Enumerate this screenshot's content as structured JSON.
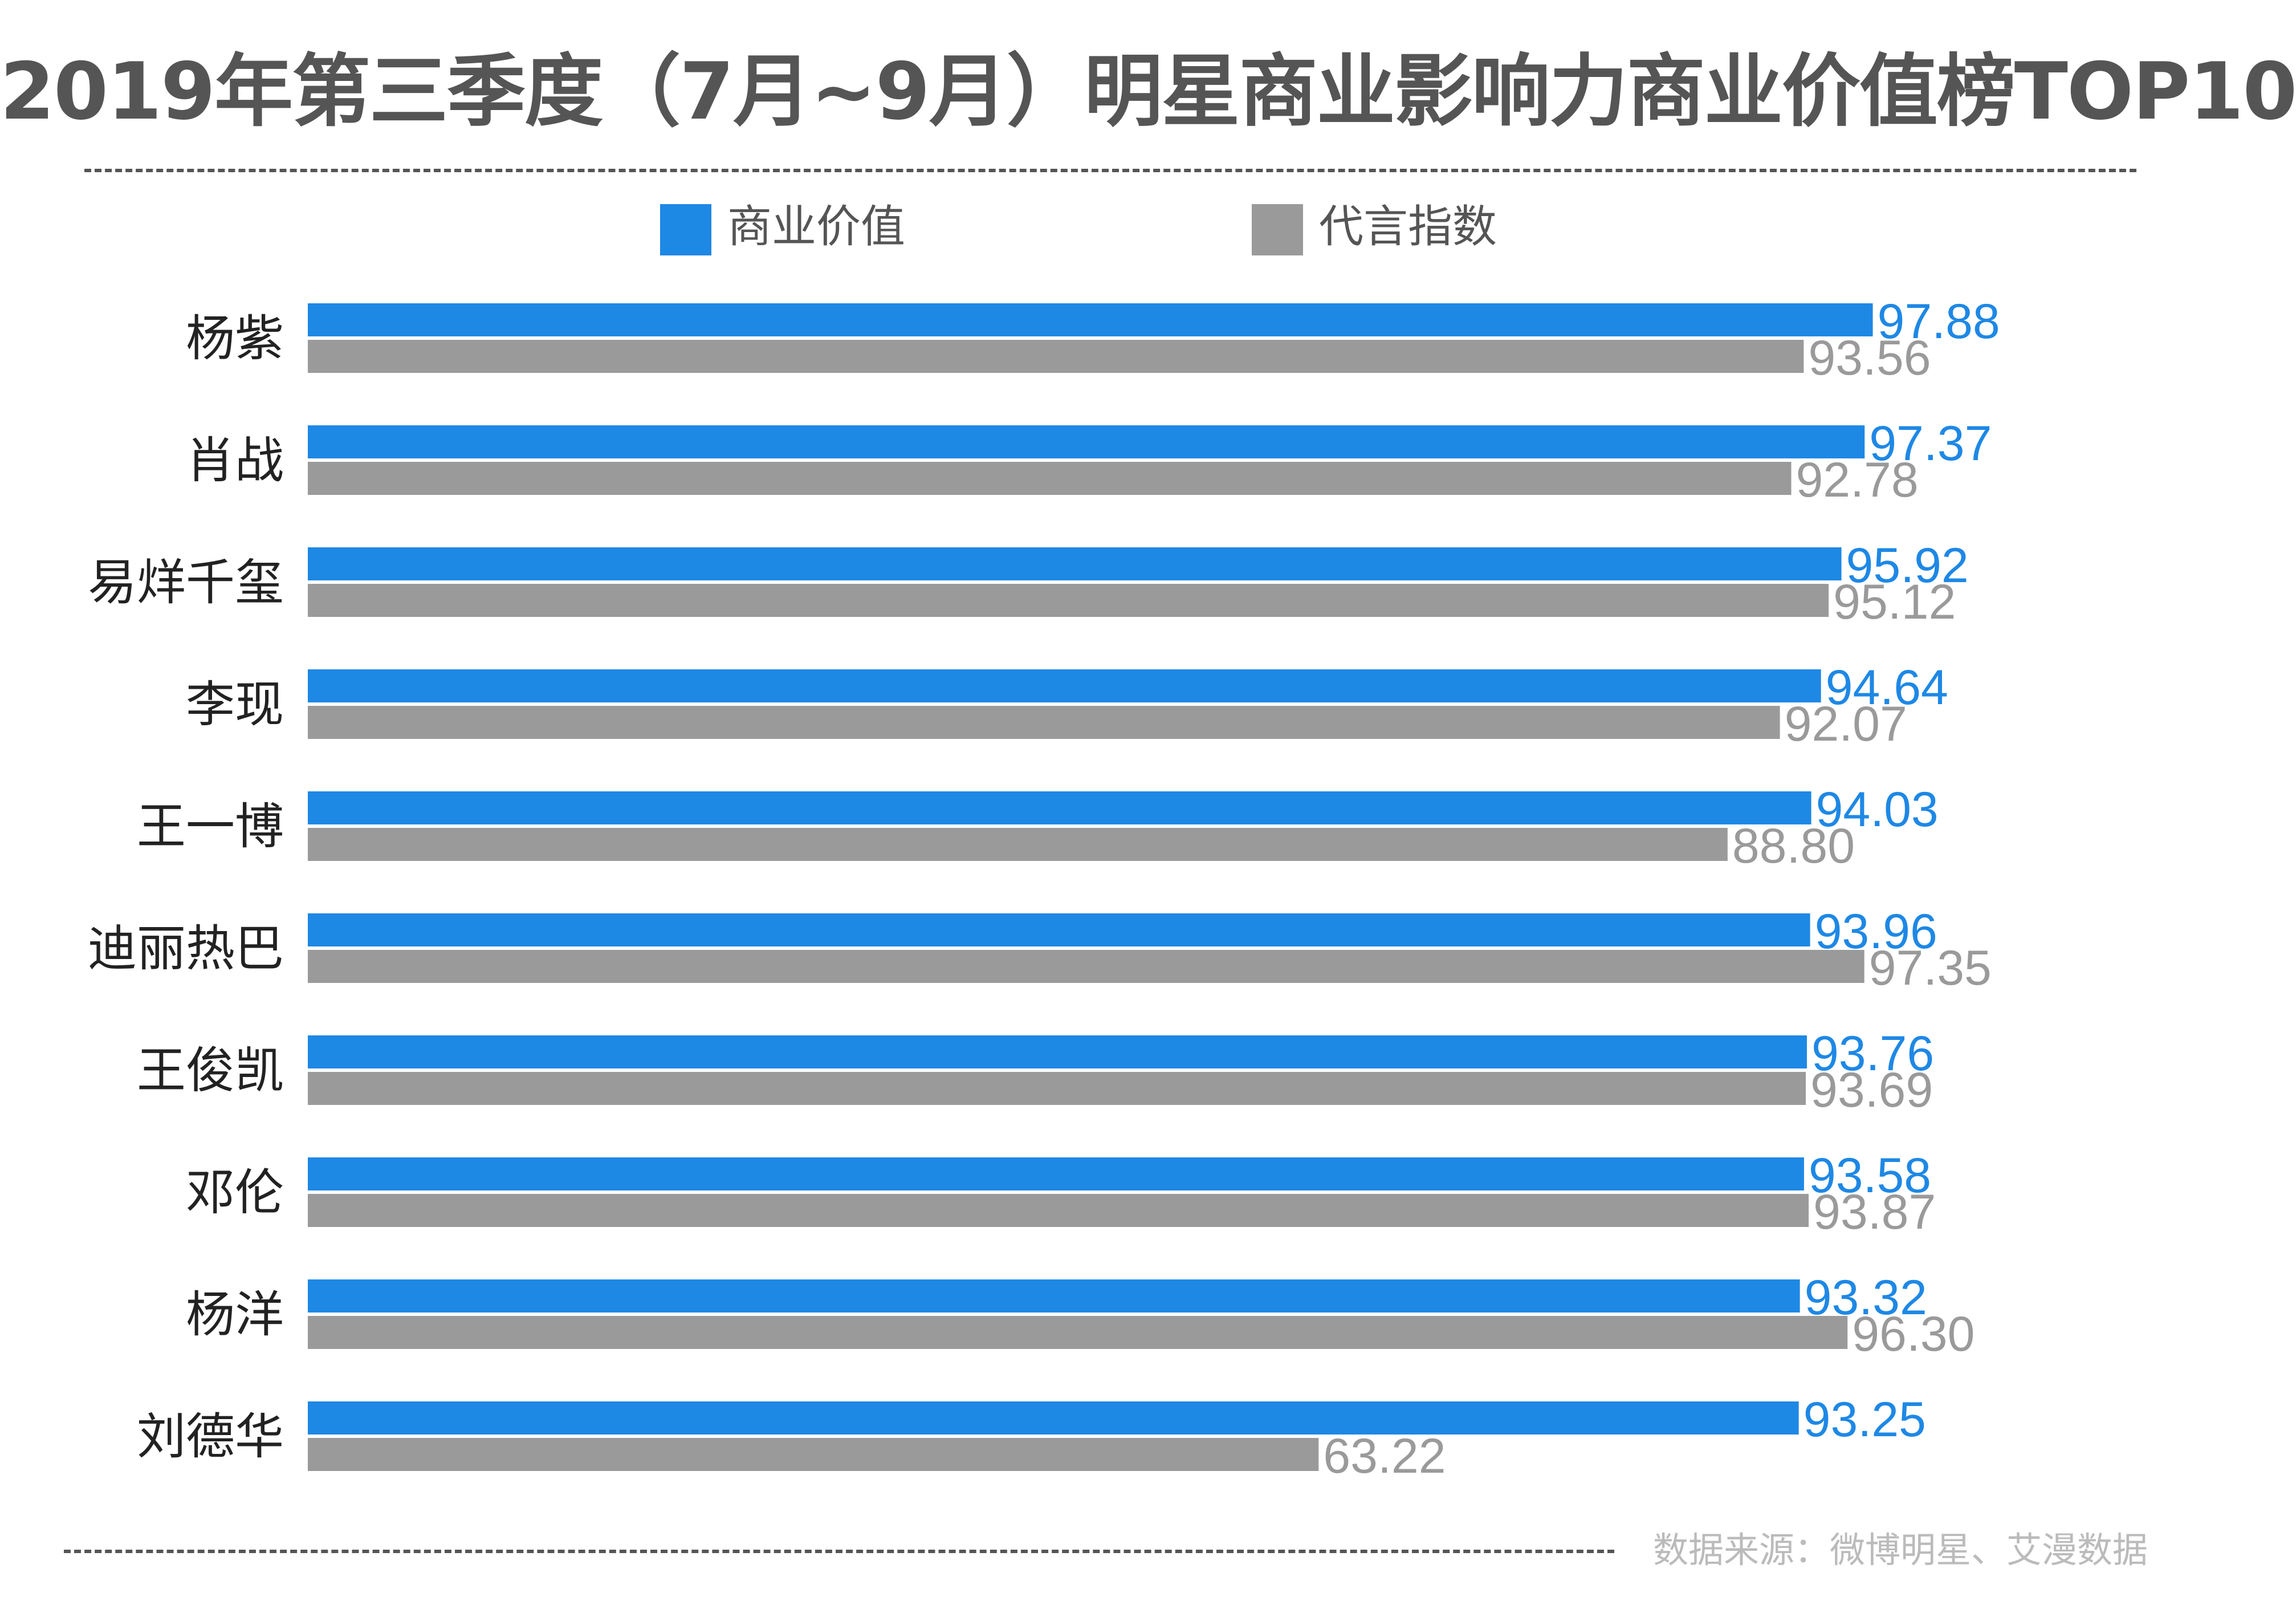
{
  "title": "2019年第三季度（7月~9月）明星商业影响力商业价值榜TOP10",
  "source_note": "数据来源：微博明星、艾漫数据",
  "colors": {
    "series_1": "#1e88e5",
    "series_2": "#9a9a9a",
    "title": "#555555",
    "category_text": "#222222",
    "source_text": "#bbbbbb"
  },
  "chart_data": {
    "type": "bar",
    "orientation": "horizontal",
    "title": "2019年第三季度（7月~9月）明星商业影响力商业价值榜TOP10",
    "xlabel": "",
    "ylabel": "",
    "xlim": [
      0,
      100
    ],
    "grid": false,
    "legend_position": "top",
    "categories": [
      "杨紫",
      "肖战",
      "易烊千玺",
      "李现",
      "王一博",
      "迪丽热巴",
      "王俊凯",
      "邓伦",
      "杨洋",
      "刘德华"
    ],
    "series": [
      {
        "name": "商业价值",
        "color": "#1e88e5",
        "values": [
          97.88,
          97.37,
          95.92,
          94.64,
          94.03,
          93.96,
          93.76,
          93.58,
          93.32,
          93.25
        ],
        "labels": [
          "97.88",
          "97.37",
          "95.92",
          "94.64",
          "94.03",
          "93.96",
          "93.76",
          "93.58",
          "93.32",
          "93.25"
        ]
      },
      {
        "name": "代言指数",
        "color": "#9a9a9a",
        "values": [
          93.56,
          92.78,
          95.12,
          92.07,
          88.8,
          97.35,
          93.69,
          93.87,
          96.3,
          63.22
        ],
        "labels": [
          "93.56",
          "92.78",
          "95.12",
          "92.07",
          "88.80",
          "97.35",
          "93.69",
          "93.87",
          "96.30",
          "63.22"
        ]
      }
    ]
  }
}
